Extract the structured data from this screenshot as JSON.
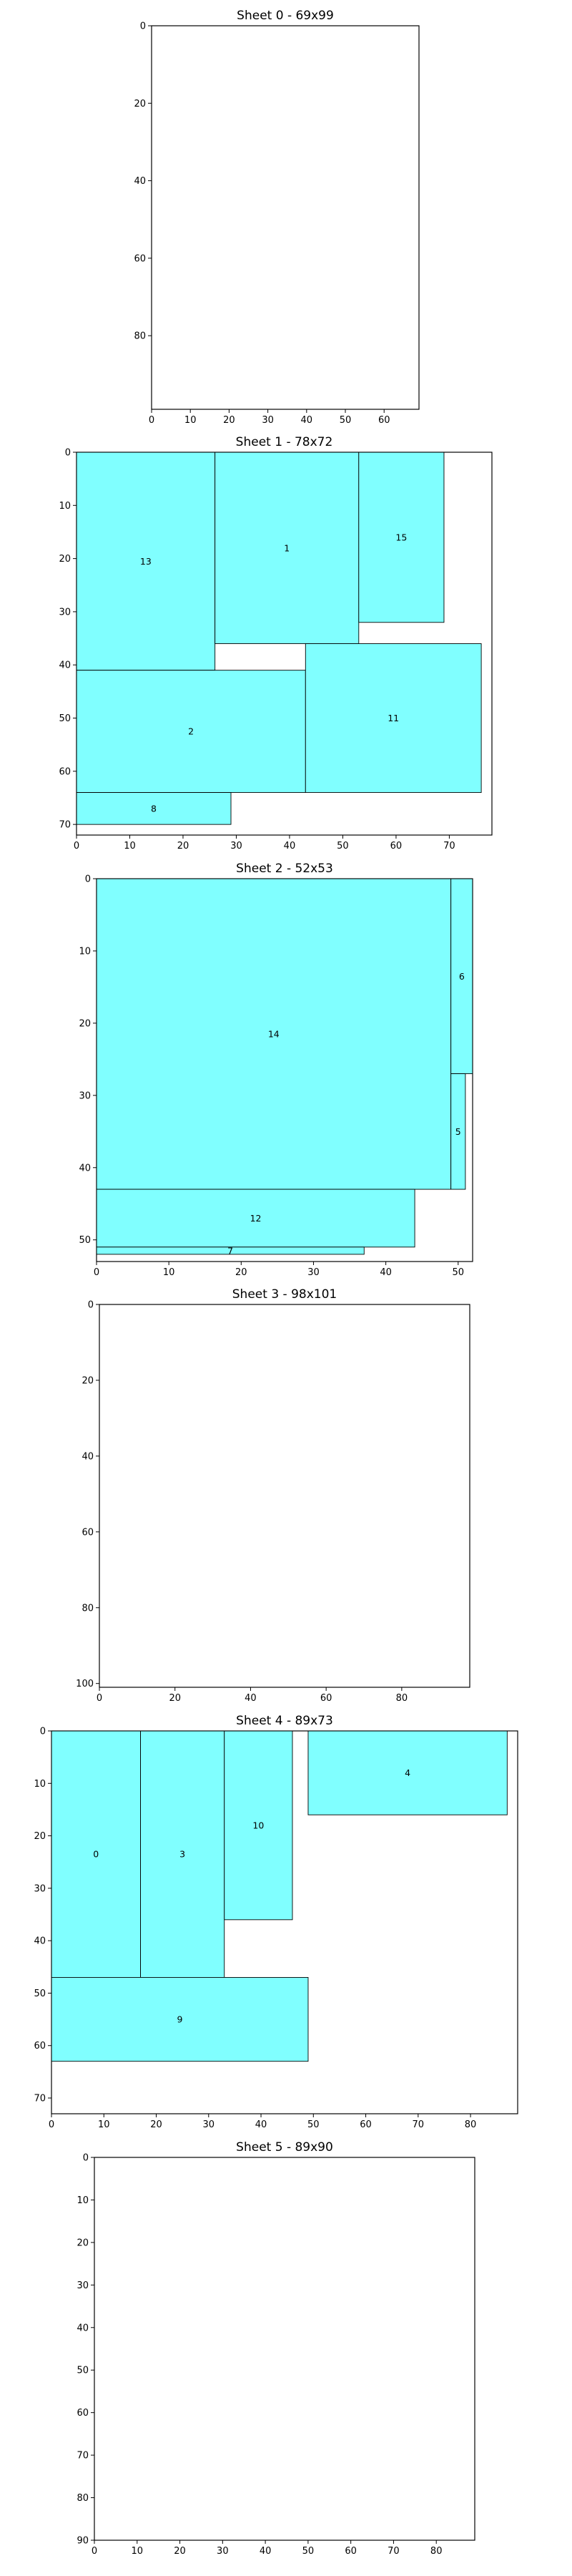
{
  "chart_data": [
    {
      "type": "rectangle-packing",
      "title": "Sheet 0 - 69x99",
      "width": 69,
      "height": 99,
      "xticks": [
        0,
        10,
        20,
        30,
        40,
        50,
        60
      ],
      "yticks": [
        0,
        20,
        40,
        60,
        80
      ],
      "fill_color": "#80ffff",
      "rects": []
    },
    {
      "type": "rectangle-packing",
      "title": "Sheet 1 - 78x72",
      "width": 78,
      "height": 72,
      "xticks": [
        0,
        10,
        20,
        30,
        40,
        50,
        60,
        70
      ],
      "yticks": [
        0,
        10,
        20,
        30,
        40,
        50,
        60,
        70
      ],
      "fill_color": "#80ffff",
      "rects": [
        {
          "label": "13",
          "x": 0,
          "y": 0,
          "w": 26,
          "h": 41
        },
        {
          "label": "1",
          "x": 26,
          "y": 0,
          "w": 27,
          "h": 36
        },
        {
          "label": "15",
          "x": 53,
          "y": 0,
          "w": 16,
          "h": 32
        },
        {
          "label": "2",
          "x": 0,
          "y": 41,
          "w": 43,
          "h": 23
        },
        {
          "label": "11",
          "x": 43,
          "y": 36,
          "w": 33,
          "h": 28
        },
        {
          "label": "8",
          "x": 0,
          "y": 64,
          "w": 29,
          "h": 6
        }
      ]
    },
    {
      "type": "rectangle-packing",
      "title": "Sheet 2 - 52x53",
      "width": 52,
      "height": 53,
      "xticks": [
        0,
        10,
        20,
        30,
        40,
        50
      ],
      "yticks": [
        0,
        10,
        20,
        30,
        40,
        50
      ],
      "fill_color": "#80ffff",
      "rects": [
        {
          "label": "14",
          "x": 0,
          "y": 0,
          "w": 49,
          "h": 43
        },
        {
          "label": "6",
          "x": 49,
          "y": 0,
          "w": 3,
          "h": 27
        },
        {
          "label": "5",
          "x": 49,
          "y": 27,
          "w": 2,
          "h": 16
        },
        {
          "label": "12",
          "x": 0,
          "y": 43,
          "w": 44,
          "h": 8
        },
        {
          "label": "7",
          "x": 0,
          "y": 51,
          "w": 37,
          "h": 1
        }
      ]
    },
    {
      "type": "rectangle-packing",
      "title": "Sheet 3 - 98x101",
      "width": 98,
      "height": 101,
      "xticks": [
        0,
        20,
        40,
        60,
        80
      ],
      "yticks": [
        0,
        20,
        40,
        60,
        80,
        100
      ],
      "fill_color": "#80ffff",
      "rects": []
    },
    {
      "type": "rectangle-packing",
      "title": "Sheet 4 - 89x73",
      "width": 89,
      "height": 73,
      "xticks": [
        0,
        10,
        20,
        30,
        40,
        50,
        60,
        70,
        80
      ],
      "yticks": [
        0,
        10,
        20,
        30,
        40,
        50,
        60,
        70
      ],
      "fill_color": "#80ffff",
      "rects": [
        {
          "label": "0",
          "x": 0,
          "y": 0,
          "w": 17,
          "h": 47
        },
        {
          "label": "3",
          "x": 17,
          "y": 0,
          "w": 16,
          "h": 47
        },
        {
          "label": "10",
          "x": 33,
          "y": 0,
          "w": 13,
          "h": 36
        },
        {
          "label": "4",
          "x": 49,
          "y": 0,
          "w": 38,
          "h": 16
        },
        {
          "label": "9",
          "x": 0,
          "y": 47,
          "w": 49,
          "h": 16
        }
      ]
    },
    {
      "type": "rectangle-packing",
      "title": "Sheet 5 - 89x90",
      "width": 89,
      "height": 90,
      "xticks": [
        0,
        10,
        20,
        30,
        40,
        50,
        60,
        70,
        80
      ],
      "yticks": [
        0,
        10,
        20,
        30,
        40,
        50,
        60,
        70,
        80,
        90
      ],
      "fill_color": "#80ffff",
      "rects": []
    }
  ]
}
